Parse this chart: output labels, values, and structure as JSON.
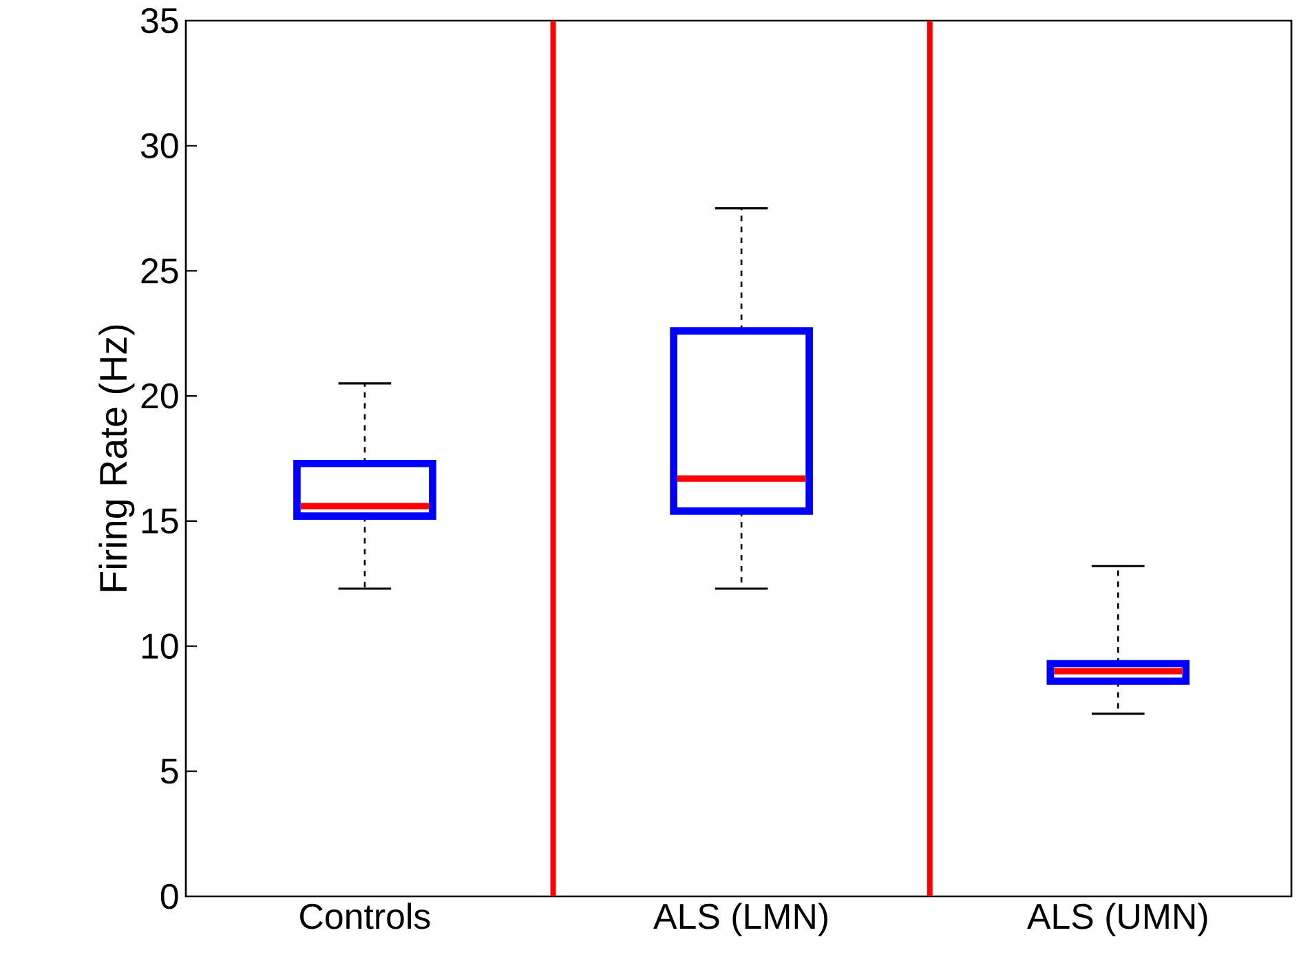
{
  "chart_data": {
    "type": "box",
    "ylabel": "Firing Rate (Hz)",
    "categories": [
      "Controls",
      "ALS (LMN)",
      "ALS (UMN)"
    ],
    "ylim": [
      0,
      35
    ],
    "yticks": [
      0,
      5,
      10,
      15,
      20,
      25,
      30,
      35
    ],
    "series": [
      {
        "color": "#0000ff",
        "boxes": [
          {
            "low": 12.3,
            "q1": 15.2,
            "median": 15.6,
            "q3": 17.3,
            "high": 20.5
          },
          {
            "low": 12.3,
            "q1": 15.4,
            "median": 16.7,
            "q3": 22.6,
            "high": 27.5
          },
          {
            "low": 7.3,
            "q1": 8.6,
            "median": 9.0,
            "q3": 9.3,
            "high": 13.2
          }
        ]
      }
    ]
  }
}
